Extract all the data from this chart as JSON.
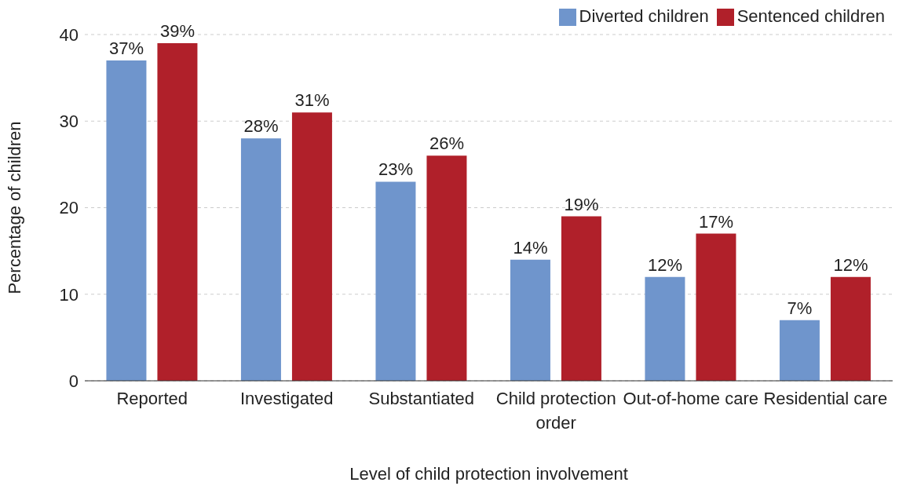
{
  "chart_data": {
    "type": "bar",
    "xlabel": "Level of child protection involvement",
    "ylabel": "Percentage of children",
    "categories": [
      "Reported",
      "Investigated",
      "Substantiated",
      "Child protection order",
      "Out-of-home care",
      "Residential care"
    ],
    "series": [
      {
        "name": "Diverted children",
        "color": "#6f95cc",
        "values": [
          37,
          28,
          23,
          14,
          12,
          7
        ],
        "value_labels": [
          "37%",
          "28%",
          "23%",
          "14%",
          "12%",
          "7%"
        ]
      },
      {
        "name": "Sentenced children",
        "color": "#b0202a",
        "values": [
          39,
          31,
          26,
          19,
          17,
          12
        ],
        "value_labels": [
          "39%",
          "31%",
          "26%",
          "19%",
          "17%",
          "12%"
        ]
      }
    ],
    "ylim": [
      0,
      40
    ],
    "yticks": [
      0,
      10,
      20,
      30,
      40
    ],
    "grid": "y",
    "legend": "top right"
  }
}
